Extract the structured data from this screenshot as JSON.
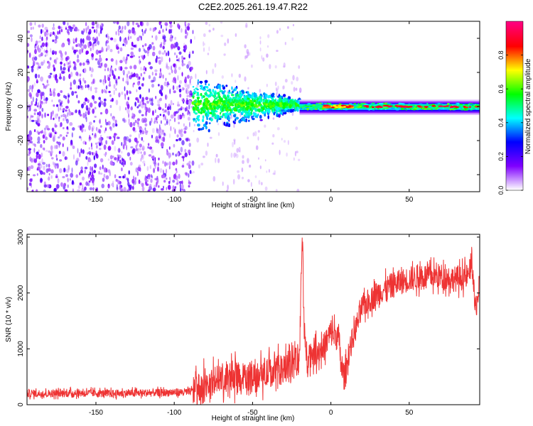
{
  "figure": {
    "title": "C2E2.2025.261.19.47.R22"
  },
  "chart_data": [
    {
      "type": "heatmap",
      "title": "C2E2.2025.261.19.47.R22",
      "xlabel": "Height of straight line (km)",
      "ylabel": "Frequency (Hz)",
      "xlim": [
        -194,
        95
      ],
      "ylim": [
        -50,
        50
      ],
      "xticks": [
        -150,
        -100,
        -50,
        0,
        50
      ],
      "yticks": [
        -40,
        -20,
        0,
        20,
        40
      ],
      "colorbar": {
        "label": "Normalized spectral amplitude",
        "range": [
          0,
          1
        ],
        "ticks": [
          0.0,
          0.2,
          0.4,
          0.6,
          0.8
        ],
        "tick_labels": [
          "0.0",
          "0.2",
          "0.4",
          "0.6",
          "0.8"
        ],
        "colormap": [
          "#ffffff",
          "#7f00ff",
          "#0000ff",
          "#00ffff",
          "#00ff00",
          "#ffff00",
          "#ff0000",
          "#ff0080"
        ]
      },
      "regions": [
        {
          "name": "noise",
          "x_range": [
            -194,
            -88
          ],
          "freq_range": [
            -50,
            50
          ],
          "amplitude": 0.15
        },
        {
          "name": "onset",
          "x_range": [
            -88,
            -20
          ],
          "freq_range": [
            -12,
            10
          ],
          "amplitude": 0.35
        },
        {
          "name": "signal",
          "x_range": [
            -20,
            95
          ],
          "freq_range": [
            -3,
            2
          ],
          "amplitude": 0.5
        },
        {
          "name": "peak",
          "x_range": [
            -5,
            15
          ],
          "freq_range": [
            -1,
            1
          ],
          "amplitude": 0.9
        }
      ]
    },
    {
      "type": "line",
      "xlabel": "Height of straight line (km)",
      "ylabel": "SNR (10 * v/v)",
      "xlim": [
        -194,
        95
      ],
      "ylim": [
        0,
        3050
      ],
      "xticks": [
        -150,
        -100,
        -50,
        0,
        50
      ],
      "yticks": [
        0,
        1000,
        2000,
        3000
      ],
      "color": "#ee3333",
      "series": [
        {
          "name": "SNR",
          "x": [
            -194,
            -180,
            -160,
            -140,
            -120,
            -100,
            -90,
            -85,
            -80,
            -70,
            -60,
            -50,
            -40,
            -30,
            -25,
            -20,
            -19,
            -18,
            -17,
            -15,
            -10,
            -5,
            0,
            5,
            7,
            9,
            12,
            20,
            30,
            40,
            50,
            60,
            70,
            80,
            88,
            90,
            92,
            95
          ],
          "values": [
            200,
            200,
            210,
            200,
            210,
            220,
            230,
            280,
            350,
            450,
            480,
            520,
            560,
            600,
            700,
            850,
            2200,
            3000,
            1100,
            900,
            950,
            1000,
            1300,
            1200,
            600,
            500,
            1000,
            1750,
            2000,
            2150,
            2250,
            2300,
            2300,
            2250,
            2300,
            2600,
            1700,
            2100
          ]
        }
      ]
    }
  ]
}
